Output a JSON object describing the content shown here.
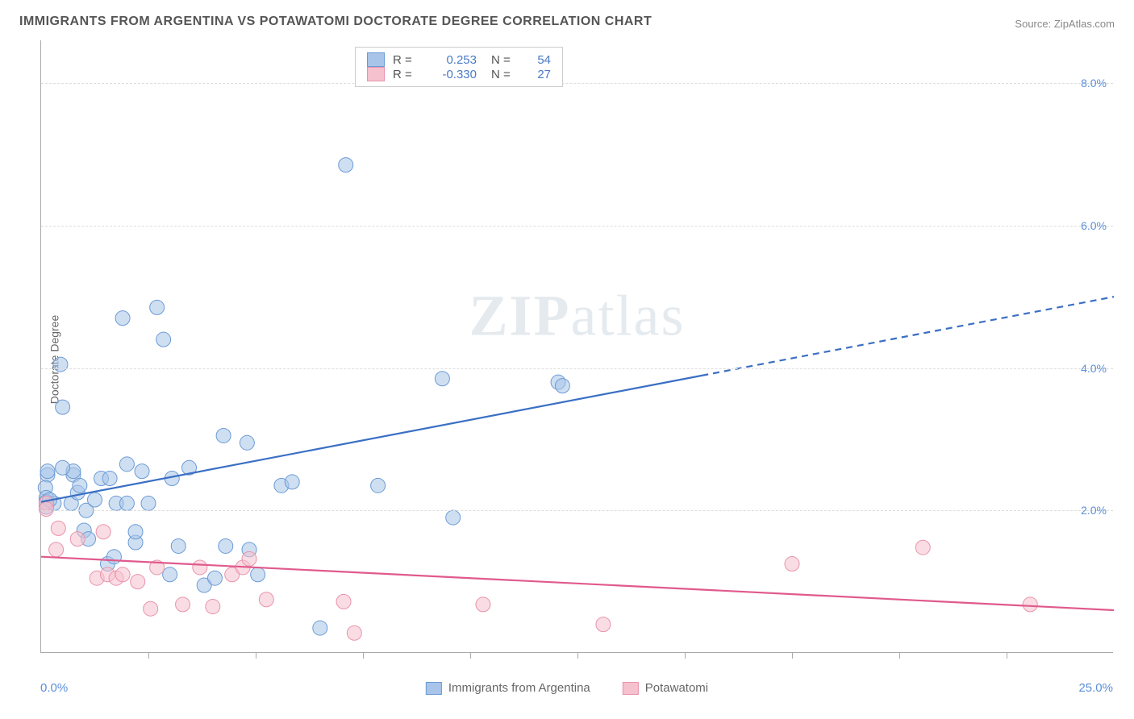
{
  "title": "IMMIGRANTS FROM ARGENTINA VS POTAWATOMI DOCTORATE DEGREE CORRELATION CHART",
  "source_label": "Source:",
  "source_name": "ZipAtlas.com",
  "ylabel": "Doctorate Degree",
  "watermark": {
    "zip": "ZIP",
    "atlas": "atlas"
  },
  "chart": {
    "type": "scatter",
    "background_color": "#ffffff",
    "grid_color": "#dddddd",
    "axis_color": "#aaaaaa",
    "y_tick_color": "#5b8fd9",
    "xlim": [
      0.0,
      25.0
    ],
    "ylim": [
      0.0,
      8.6
    ],
    "x_ticks_minor": [
      2.5,
      5.0,
      7.5,
      10.0,
      12.5,
      15.0,
      17.5,
      20.0,
      22.5
    ],
    "y_gridlines": [
      2.0,
      4.0,
      6.0,
      8.0
    ],
    "y_tick_labels": [
      "2.0%",
      "4.0%",
      "6.0%",
      "8.0%"
    ],
    "x_min_label": "0.0%",
    "x_max_label": "25.0%",
    "label_fontsize": 14,
    "title_fontsize": 16,
    "marker_radius": 9,
    "marker_opacity": 0.55,
    "series": [
      {
        "name": "Immigrants from Argentina",
        "color_fill": "#a8c4e8",
        "color_stroke": "#6b9bd6",
        "trend_color": "#3a6fc4",
        "trend_width": 2.2,
        "r": "0.253",
        "n": "54",
        "trend": {
          "x1": 0.0,
          "y1": 2.12,
          "x2": 25.0,
          "y2": 5.0,
          "solid_until_x": 15.4
        },
        "points": [
          [
            0.15,
            2.5
          ],
          [
            0.15,
            2.55
          ],
          [
            0.1,
            2.32
          ],
          [
            0.12,
            2.18
          ],
          [
            0.12,
            2.12
          ],
          [
            0.12,
            2.05
          ],
          [
            0.5,
            3.45
          ],
          [
            0.45,
            4.05
          ],
          [
            1.0,
            1.72
          ],
          [
            0.75,
            2.5
          ],
          [
            0.75,
            2.55
          ],
          [
            0.7,
            2.1
          ],
          [
            0.85,
            2.25
          ],
          [
            1.05,
            2.0
          ],
          [
            1.1,
            1.6
          ],
          [
            1.4,
            2.45
          ],
          [
            1.9,
            4.7
          ],
          [
            1.55,
            1.25
          ],
          [
            1.6,
            2.45
          ],
          [
            1.7,
            1.35
          ],
          [
            1.75,
            2.1
          ],
          [
            2.0,
            2.65
          ],
          [
            2.0,
            2.1
          ],
          [
            2.2,
            1.55
          ],
          [
            2.2,
            1.7
          ],
          [
            2.35,
            2.55
          ],
          [
            2.5,
            2.1
          ],
          [
            2.7,
            4.85
          ],
          [
            2.85,
            4.4
          ],
          [
            3.05,
            2.45
          ],
          [
            3.2,
            1.5
          ],
          [
            3.45,
            2.6
          ],
          [
            3.8,
            0.95
          ],
          [
            4.05,
            1.05
          ],
          [
            4.25,
            3.05
          ],
          [
            4.3,
            1.5
          ],
          [
            4.8,
            2.95
          ],
          [
            4.85,
            1.45
          ],
          [
            5.05,
            1.1
          ],
          [
            5.6,
            2.35
          ],
          [
            5.85,
            2.4
          ],
          [
            6.5,
            0.35
          ],
          [
            7.1,
            6.85
          ],
          [
            7.85,
            2.35
          ],
          [
            9.35,
            3.85
          ],
          [
            9.6,
            1.9
          ],
          [
            12.05,
            3.8
          ],
          [
            12.15,
            3.75
          ],
          [
            0.3,
            2.1
          ],
          [
            0.5,
            2.6
          ],
          [
            0.9,
            2.35
          ],
          [
            1.25,
            2.15
          ],
          [
            0.2,
            2.15
          ],
          [
            3.0,
            1.1
          ]
        ]
      },
      {
        "name": "Potawatomi",
        "color_fill": "#f5c1ce",
        "color_stroke": "#e893ab",
        "trend_color": "#e05a8c",
        "trend_width": 2.2,
        "r": "-0.330",
        "n": "27",
        "trend": {
          "x1": 0.0,
          "y1": 1.35,
          "x2": 25.0,
          "y2": 0.6,
          "solid_until_x": 25.0
        },
        "points": [
          [
            0.12,
            2.1
          ],
          [
            0.12,
            2.02
          ],
          [
            0.4,
            1.75
          ],
          [
            0.85,
            1.6
          ],
          [
            1.3,
            1.05
          ],
          [
            1.45,
            1.7
          ],
          [
            1.55,
            1.1
          ],
          [
            1.75,
            1.05
          ],
          [
            1.9,
            1.1
          ],
          [
            2.25,
            1.0
          ],
          [
            2.55,
            0.62
          ],
          [
            2.7,
            1.2
          ],
          [
            3.3,
            0.68
          ],
          [
            3.7,
            1.2
          ],
          [
            4.0,
            0.65
          ],
          [
            4.45,
            1.1
          ],
          [
            4.7,
            1.2
          ],
          [
            5.25,
            0.75
          ],
          [
            7.05,
            0.72
          ],
          [
            7.3,
            0.28
          ],
          [
            10.3,
            0.68
          ],
          [
            13.1,
            0.4
          ],
          [
            17.5,
            1.25
          ],
          [
            20.55,
            1.48
          ],
          [
            23.05,
            0.68
          ],
          [
            0.35,
            1.45
          ],
          [
            4.85,
            1.32
          ]
        ]
      }
    ]
  },
  "legend_top": {
    "r_label": "R =",
    "n_label": "N ="
  }
}
